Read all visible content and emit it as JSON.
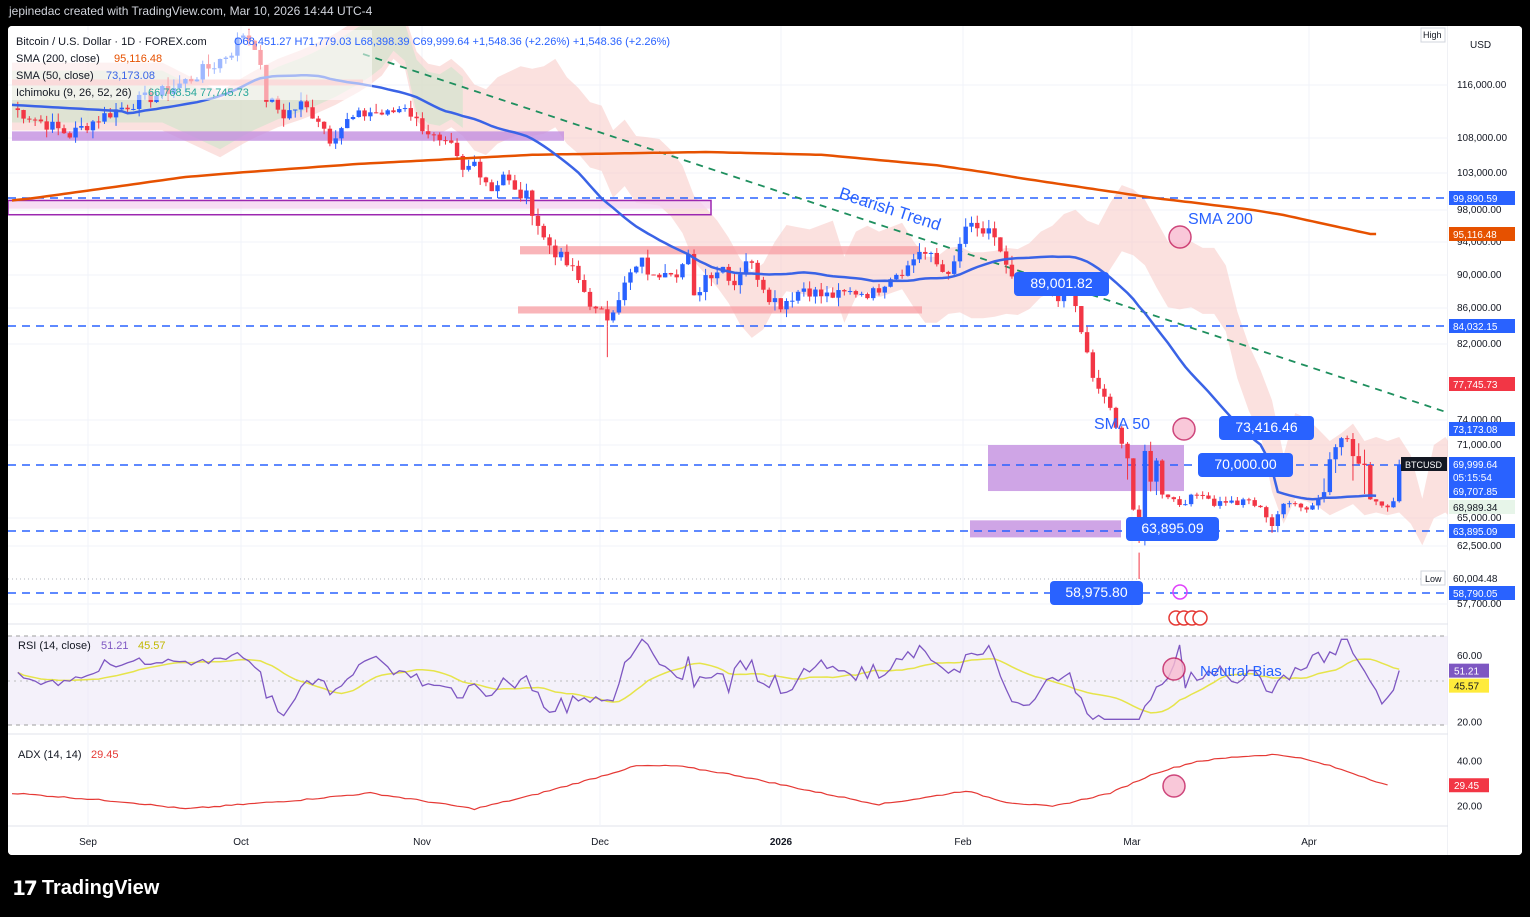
{
  "header": {
    "attribution": "jepinedac created with TradingView.com, Mar 10, 2026 14:44 UTC-4"
  },
  "legend": {
    "symbol_line": "Bitcoin / U.S. Dollar · 1D · FOREX.com",
    "ohlc": "O68,451.27  H71,779.03  L68,398.39  C69,999.64  +1,548.36 (+2.26%)  +1,548.36 (+2.26%)",
    "sma200": "SMA (200, close)",
    "sma200_val": "95,116.48",
    "sma50": "SMA (50, close)",
    "sma50_val": "73,173.08",
    "ichimoku": "Ichimoku (9, 26, 52, 26)",
    "ichimoku_vals": "66,768.54  77,745.73",
    "rsi": "RSI (14, close)",
    "rsi_val": "51.21",
    "rsi_ma_val": "45.57",
    "adx": "ADX (14, 14)",
    "adx_val": "29.45"
  },
  "price_axis": {
    "currency": "USD",
    "high_tag": "High",
    "low_tag": "Low",
    "ticks": [
      "116,000.00",
      "108,000.00",
      "103,000.00",
      "98,000.00",
      "94,000.00",
      "90,000.00",
      "86,000.00",
      "82,000.00",
      "74,000.00",
      "71,000.00",
      "65,000.00",
      "62,500.00",
      "57,700.00"
    ],
    "badges": [
      {
        "text": "99,890.59",
        "color": "#2962ff"
      },
      {
        "text": "95,116.48",
        "color": "#e65100"
      },
      {
        "text": "84,032.15",
        "color": "#2962ff"
      },
      {
        "text": "77,745.73",
        "color": "#f23645"
      },
      {
        "text": "73,173.08",
        "color": "#2962ff"
      },
      {
        "text": "69,999.64",
        "color": "#2962ff"
      },
      {
        "text": "05:15:54",
        "color": "#2962ff"
      },
      {
        "text": "69,707.85",
        "color": "#2962ff"
      },
      {
        "text": "68,989.34",
        "color": "#e7f5e9"
      },
      {
        "text": "63,895.09",
        "color": "#2962ff"
      },
      {
        "text": "60,004.48",
        "color": "#ffffff"
      },
      {
        "text": "58,790.05",
        "color": "#2962ff"
      }
    ],
    "symbol_tag": "BTCUSD",
    "rsi_ticks": [
      "60.00",
      "20.00"
    ],
    "rsi_badges": [
      {
        "text": "51.21",
        "color": "#7e57c2"
      },
      {
        "text": "45.57",
        "color": "#ffeb3b"
      }
    ],
    "adx_ticks": [
      "40.00",
      "20.00"
    ],
    "adx_badge": {
      "text": "29.45",
      "color": "#f23645"
    }
  },
  "time_axis": [
    "Sep",
    "Oct",
    "Nov",
    "Dec",
    "2026",
    "Feb",
    "Mar",
    "Apr"
  ],
  "annotations": {
    "bearish_trend": "Bearish Trend",
    "sma200_label": "SMA 200",
    "sma50_label": "SMA 50",
    "neutral_bias": "Neutral Bias",
    "level_89001": "89,001.82",
    "level_73416": "73,416.46",
    "level_70000": "70,000.00",
    "level_63895": "63,895.09",
    "level_58975": "58,975.80"
  },
  "colors": {
    "up": "#2962ff",
    "down": "#f23645",
    "sma50": "#3a63e6",
    "sma200": "#e65100",
    "cloud_bear": "#f8c9c4",
    "cloud_bull": "#c9e6c9",
    "zone_red": "#f7a3a8",
    "zone_purple": "#c38ee0",
    "trend": "#1e8f5e",
    "rsi_line": "#7e57c2",
    "rsi_ma": "#e6e44a",
    "adx_line": "#e53935"
  },
  "footer": {
    "brand": "TradingView"
  },
  "chart_data": {
    "type": "candlestick",
    "title": "Bitcoin / U.S. Dollar · 1D · FOREX.com",
    "x_range": [
      "Aug 25",
      "Apr 18"
    ],
    "last_close": 69999.64,
    "period_high": 126000,
    "period_low": 60004.48,
    "indicators": {
      "sma50": {
        "last": 73173.08
      },
      "sma200": {
        "last": 95116.48
      },
      "rsi14": {
        "last": 51.21,
        "ma": 45.57
      },
      "adx14": {
        "last": 29.45
      }
    },
    "horizontal_levels": [
      99890.59,
      84032.15,
      69999.64,
      63895.09,
      58790.05
    ],
    "key_levels_labeled": [
      89001.82,
      73416.46,
      70000.0,
      63895.09,
      58975.8
    ],
    "ylim": [
      56500,
      124000
    ]
  }
}
